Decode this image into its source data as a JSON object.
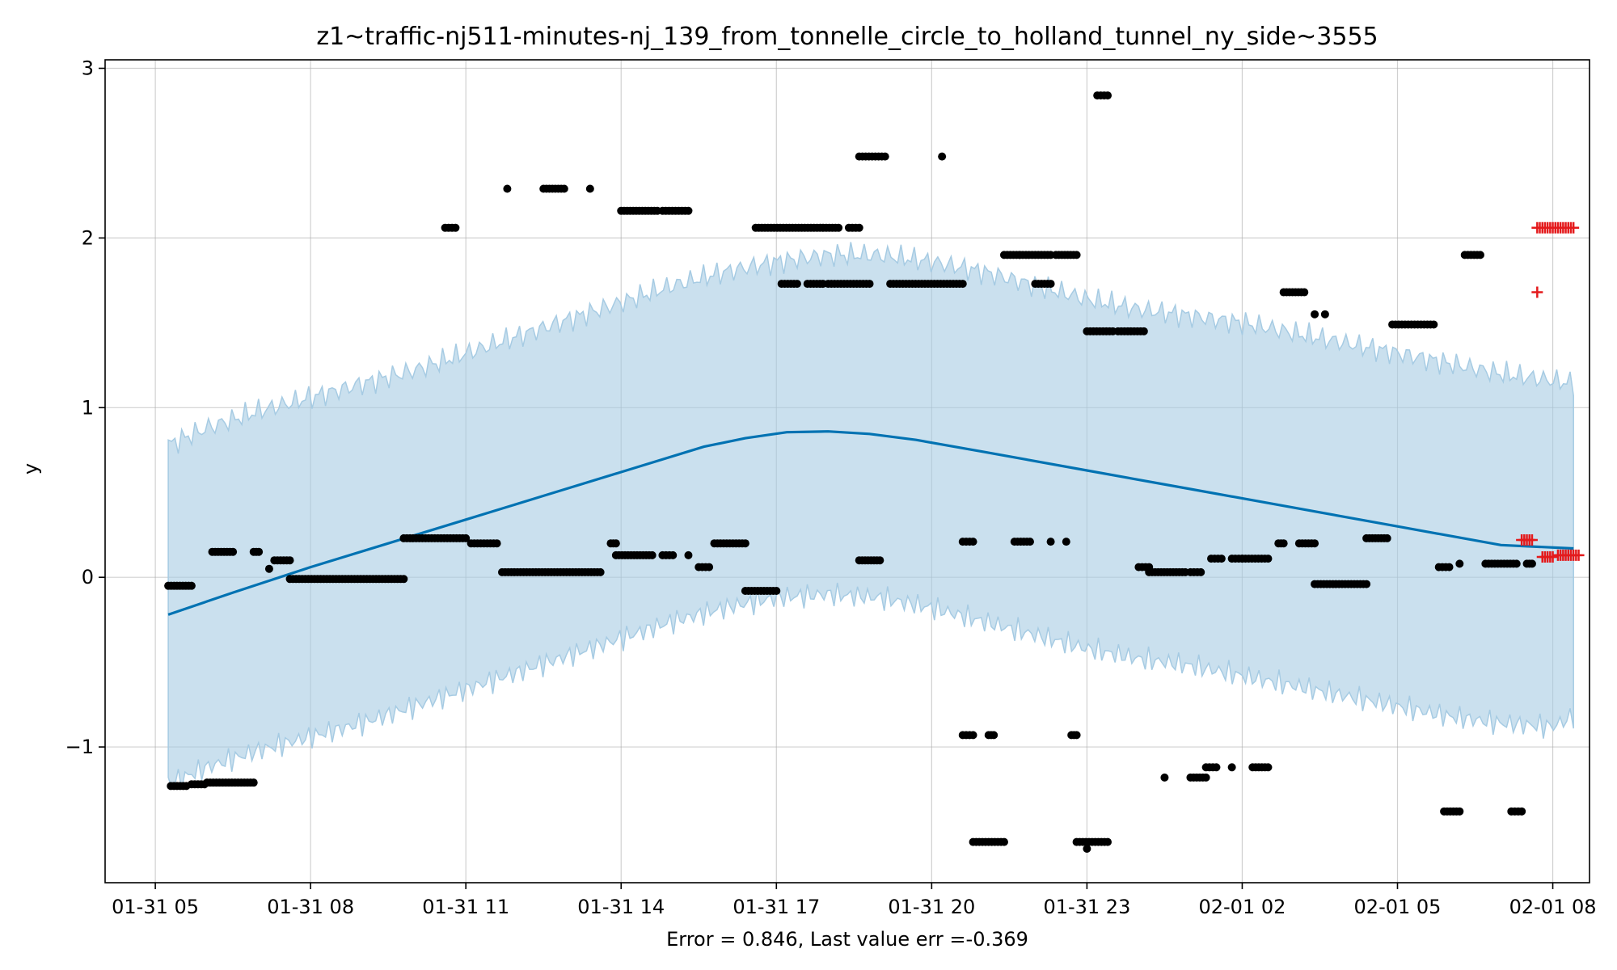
{
  "chart_data": {
    "type": "scatter",
    "title": "z1~traffic-nj511-minutes-nj_139_from_tonnelle_circle_to_holland_tunnel_ny_side~3555",
    "xlabel": "Error = 0.846, Last value err =-0.369",
    "ylabel": "y",
    "x_ticks": [
      "01-31 05",
      "01-31 08",
      "01-31 11",
      "01-31 14",
      "01-31 17",
      "01-31 20",
      "01-31 23",
      "02-01 02",
      "02-01 05",
      "02-01 08"
    ],
    "y_ticks": [
      "−1",
      "0",
      "1",
      "2",
      "3"
    ],
    "x_range_hours": [
      4.03,
      32.71
    ],
    "ylim": [
      -1.8,
      3.05
    ],
    "grid": true,
    "colors": {
      "forecast_line": "#0072b2",
      "interval_fill": "#a6cbe3",
      "observed_points": "#000000",
      "future_points": "#e41a1c"
    },
    "forecast": {
      "x": [
        5.25,
        6.5,
        8,
        9.5,
        11,
        12.5,
        14,
        15.6,
        16.4,
        17.2,
        18,
        18.8,
        19.7,
        21,
        23,
        25,
        27,
        29,
        31,
        32.4
      ],
      "y": [
        -0.22,
        -0.09,
        0.06,
        0.2,
        0.34,
        0.48,
        0.62,
        0.77,
        0.82,
        0.855,
        0.86,
        0.845,
        0.81,
        0.74,
        0.63,
        0.52,
        0.41,
        0.3,
        0.19,
        0.17
      ]
    },
    "interval": {
      "x": [
        5.25,
        6,
        7,
        8,
        9,
        10,
        11,
        12,
        13,
        14,
        15,
        16,
        17,
        18,
        19,
        20,
        21,
        22,
        23,
        24,
        25,
        26,
        27,
        28,
        29,
        30,
        31,
        32,
        32.4
      ],
      "upper": [
        0.78,
        0.88,
        0.98,
        1.06,
        1.14,
        1.22,
        1.32,
        1.42,
        1.52,
        1.62,
        1.72,
        1.8,
        1.86,
        1.9,
        1.9,
        1.86,
        1.8,
        1.72,
        1.64,
        1.58,
        1.54,
        1.5,
        1.44,
        1.38,
        1.32,
        1.26,
        1.2,
        1.16,
        1.14
      ],
      "lower": [
        -1.22,
        -1.12,
        -1.02,
        -0.94,
        -0.86,
        -0.76,
        -0.66,
        -0.56,
        -0.46,
        -0.36,
        -0.26,
        -0.18,
        -0.12,
        -0.1,
        -0.12,
        -0.18,
        -0.26,
        -0.34,
        -0.42,
        -0.48,
        -0.52,
        -0.58,
        -0.64,
        -0.7,
        -0.76,
        -0.82,
        -0.86,
        -0.88,
        -0.82
      ]
    },
    "observed": [
      {
        "x0": 5.25,
        "x1": 5.7,
        "y": -0.05
      },
      {
        "x0": 5.3,
        "x1": 5.6,
        "y": -1.23
      },
      {
        "x0": 5.7,
        "x1": 5.95,
        "y": -1.22
      },
      {
        "x0": 6.0,
        "x1": 6.9,
        "y": -1.21
      },
      {
        "x0": 6.1,
        "x1": 6.5,
        "y": 0.15
      },
      {
        "x0": 6.9,
        "x1": 7.0,
        "y": 0.15
      },
      {
        "x0": 7.2,
        "x1": 7.2,
        "y": 0.05
      },
      {
        "x0": 7.3,
        "x1": 7.6,
        "y": 0.1
      },
      {
        "x0": 7.6,
        "x1": 9.8,
        "y": -0.01
      },
      {
        "x0": 9.8,
        "x1": 11.0,
        "y": 0.23
      },
      {
        "x0": 10.6,
        "x1": 10.8,
        "y": 2.06
      },
      {
        "x0": 11.1,
        "x1": 11.6,
        "y": 0.2
      },
      {
        "x0": 11.8,
        "x1": 11.8,
        "y": 2.29
      },
      {
        "x0": 11.7,
        "x1": 13.6,
        "y": 0.03
      },
      {
        "x0": 12.5,
        "x1": 12.9,
        "y": 2.29
      },
      {
        "x0": 13.4,
        "x1": 13.4,
        "y": 2.29
      },
      {
        "x0": 13.8,
        "x1": 13.9,
        "y": 0.2
      },
      {
        "x0": 13.9,
        "x1": 14.6,
        "y": 0.13
      },
      {
        "x0": 14.0,
        "x1": 14.7,
        "y": 2.16
      },
      {
        "x0": 14.8,
        "x1": 15.3,
        "y": 2.16
      },
      {
        "x0": 14.8,
        "x1": 15.0,
        "y": 0.13
      },
      {
        "x0": 15.3,
        "x1": 15.3,
        "y": 0.13
      },
      {
        "x0": 15.5,
        "x1": 15.7,
        "y": 0.06
      },
      {
        "x0": 15.8,
        "x1": 16.4,
        "y": 0.2
      },
      {
        "x0": 16.4,
        "x1": 17.0,
        "y": -0.08
      },
      {
        "x0": 16.6,
        "x1": 18.2,
        "y": 2.06
      },
      {
        "x0": 18.4,
        "x1": 18.6,
        "y": 2.06
      },
      {
        "x0": 17.1,
        "x1": 17.4,
        "y": 1.73
      },
      {
        "x0": 17.6,
        "x1": 17.9,
        "y": 1.73
      },
      {
        "x0": 18.0,
        "x1": 18.8,
        "y": 1.73
      },
      {
        "x0": 18.6,
        "x1": 19.0,
        "y": 0.1
      },
      {
        "x0": 18.6,
        "x1": 19.1,
        "y": 2.48
      },
      {
        "x0": 20.2,
        "x1": 20.2,
        "y": 2.48
      },
      {
        "x0": 19.2,
        "x1": 20.6,
        "y": 1.73
      },
      {
        "x0": 20.6,
        "x1": 20.8,
        "y": 0.21
      },
      {
        "x0": 20.6,
        "x1": 20.8,
        "y": -0.93
      },
      {
        "x0": 21.1,
        "x1": 21.2,
        "y": -0.93
      },
      {
        "x0": 20.8,
        "x1": 21.4,
        "y": -1.56
      },
      {
        "x0": 21.4,
        "x1": 21.7,
        "y": 1.9
      },
      {
        "x0": 21.7,
        "x1": 22.3,
        "y": 1.9
      },
      {
        "x0": 22.4,
        "x1": 22.8,
        "y": 1.9
      },
      {
        "x0": 21.6,
        "x1": 21.9,
        "y": 0.21
      },
      {
        "x0": 22.3,
        "x1": 22.3,
        "y": 0.21
      },
      {
        "x0": 22.6,
        "x1": 22.6,
        "y": 0.21
      },
      {
        "x0": 22.0,
        "x1": 22.3,
        "y": 1.73
      },
      {
        "x0": 22.7,
        "x1": 22.8,
        "y": -0.93
      },
      {
        "x0": 22.8,
        "x1": 23.4,
        "y": -1.56
      },
      {
        "x0": 23.0,
        "x1": 23.0,
        "y": -1.6
      },
      {
        "x0": 23.0,
        "x1": 23.5,
        "y": 1.45
      },
      {
        "x0": 23.6,
        "x1": 24.1,
        "y": 1.45
      },
      {
        "x0": 23.2,
        "x1": 23.4,
        "y": 2.84
      },
      {
        "x0": 24.0,
        "x1": 24.2,
        "y": 0.06
      },
      {
        "x0": 24.2,
        "x1": 24.9,
        "y": 0.03
      },
      {
        "x0": 25.0,
        "x1": 25.2,
        "y": 0.03
      },
      {
        "x0": 24.5,
        "x1": 24.5,
        "y": -1.18
      },
      {
        "x0": 25.0,
        "x1": 25.3,
        "y": -1.18
      },
      {
        "x0": 25.3,
        "x1": 25.5,
        "y": -1.12
      },
      {
        "x0": 25.8,
        "x1": 25.8,
        "y": -1.12
      },
      {
        "x0": 26.2,
        "x1": 26.5,
        "y": -1.12
      },
      {
        "x0": 25.4,
        "x1": 25.6,
        "y": 0.11
      },
      {
        "x0": 25.8,
        "x1": 26.0,
        "y": 0.11
      },
      {
        "x0": 26.0,
        "x1": 26.5,
        "y": 0.11
      },
      {
        "x0": 26.7,
        "x1": 26.8,
        "y": 0.2
      },
      {
        "x0": 27.1,
        "x1": 27.4,
        "y": 0.2
      },
      {
        "x0": 26.8,
        "x1": 27.2,
        "y": 1.68
      },
      {
        "x0": 27.4,
        "x1": 27.4,
        "y": 1.55
      },
      {
        "x0": 27.6,
        "x1": 27.6,
        "y": 1.55
      },
      {
        "x0": 27.4,
        "x1": 28.4,
        "y": -0.04
      },
      {
        "x0": 28.4,
        "x1": 28.8,
        "y": 0.23
      },
      {
        "x0": 28.9,
        "x1": 29.7,
        "y": 1.49
      },
      {
        "x0": 29.8,
        "x1": 30.0,
        "y": 0.06
      },
      {
        "x0": 30.2,
        "x1": 30.2,
        "y": 0.08
      },
      {
        "x0": 30.7,
        "x1": 31.3,
        "y": 0.08
      },
      {
        "x0": 31.5,
        "x1": 31.6,
        "y": 0.08
      },
      {
        "x0": 29.9,
        "x1": 30.2,
        "y": -1.38
      },
      {
        "x0": 31.2,
        "x1": 31.4,
        "y": -1.38
      },
      {
        "x0": 30.3,
        "x1": 30.6,
        "y": 1.9
      }
    ],
    "future": [
      {
        "x0": 31.4,
        "x1": 31.6,
        "y": 0.22
      },
      {
        "x0": 31.8,
        "x1": 32.0,
        "y": 0.12
      },
      {
        "x0": 32.1,
        "x1": 32.5,
        "y": 0.13
      },
      {
        "x0": 31.7,
        "x1": 32.4,
        "y": 2.06
      },
      {
        "x0": 31.7,
        "x1": 31.7,
        "y": 1.68
      }
    ]
  }
}
